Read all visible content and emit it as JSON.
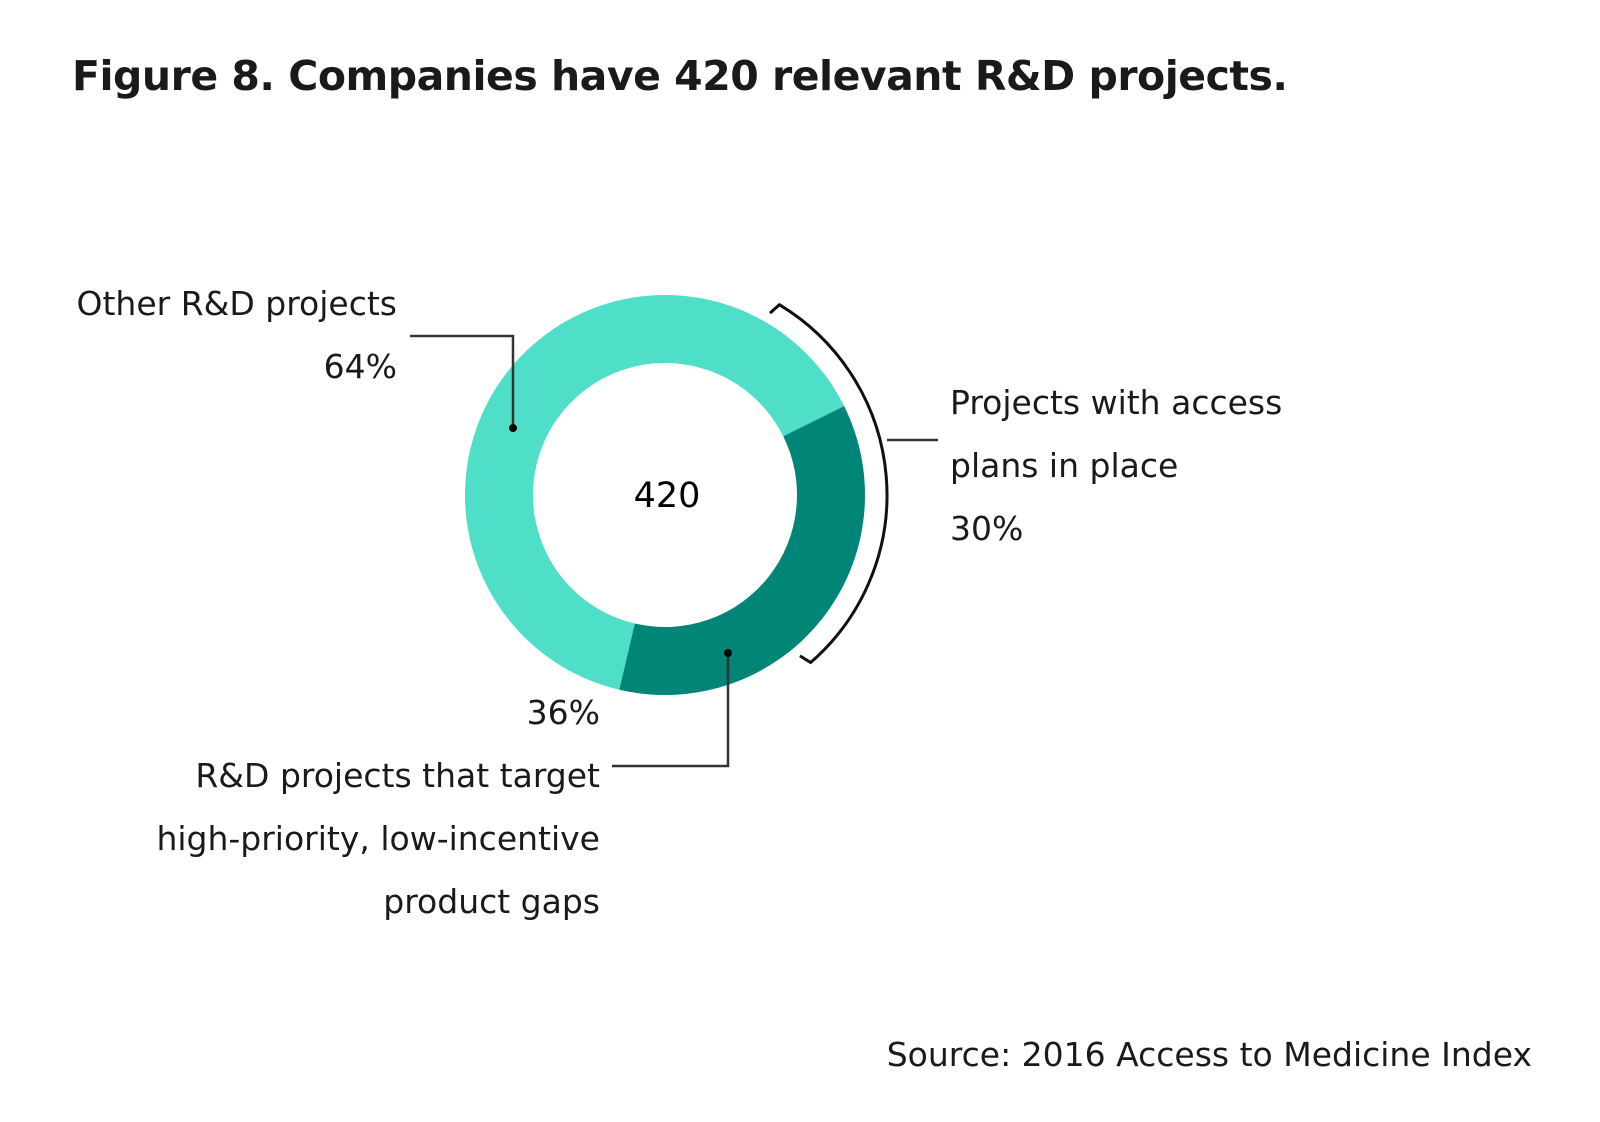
{
  "chart_data": {
    "type": "pie",
    "title": "Figure 8. Companies have 420 relevant R&D projects.",
    "center_label": "420",
    "slices": [
      {
        "label": "Other R&D projects",
        "value": 64,
        "value_label": "64%",
        "color": "#4fdec8"
      },
      {
        "label": "R&D projects that target high-priority, low-incentive product gaps",
        "value": 36,
        "value_label": "36%",
        "color": "#008577"
      }
    ],
    "bracket": {
      "label": "Projects with access plans in place",
      "value": 30,
      "value_label": "30%"
    },
    "source": "Source: 2016 Access to Medicine Index"
  },
  "labels": {
    "other_line1": "Other R&D projects",
    "gap_line1": "R&D projects that target",
    "gap_line2": "high-priority, low-incentive",
    "gap_line3": "product gaps",
    "access_line1": "Projects with access",
    "access_line2": "plans in place"
  }
}
